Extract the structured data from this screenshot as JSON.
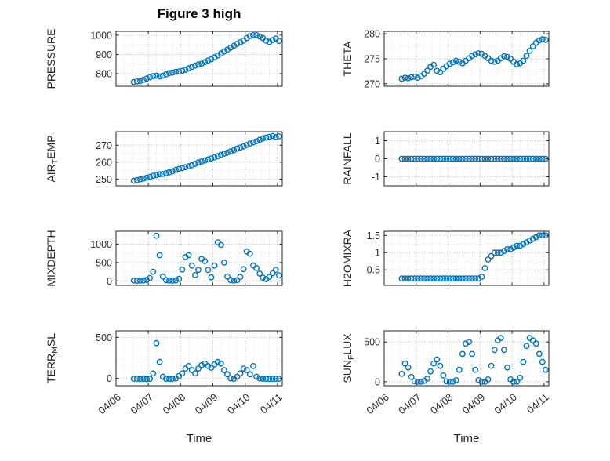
{
  "figure": {
    "title": "Figure 3 high",
    "xlabel": "Time",
    "marker_color": "#0072BD",
    "axis_color": "#262626",
    "grid_major_color": "#b8b8b8",
    "grid_minor_color": "#e2e2e2",
    "xlim": [
      0,
      5.15
    ],
    "x_ticks": {
      "values": [
        0,
        1,
        2,
        3,
        4,
        5
      ],
      "labels": [
        "04/06",
        "04/07",
        "04/08",
        "04/09",
        "04/10",
        "04/11"
      ]
    },
    "x_days": [
      0.55,
      0.65,
      0.75,
      0.85,
      0.95,
      1.05,
      1.15,
      1.25,
      1.35,
      1.45,
      1.55,
      1.65,
      1.75,
      1.85,
      1.95,
      2.05,
      2.15,
      2.25,
      2.35,
      2.45,
      2.55,
      2.65,
      2.75,
      2.85,
      2.95,
      3.05,
      3.15,
      3.25,
      3.35,
      3.45,
      3.55,
      3.65,
      3.75,
      3.85,
      3.95,
      4.05,
      4.15,
      4.25,
      4.35,
      4.45,
      4.55,
      4.65,
      4.75,
      4.85,
      4.95,
      5.05
    ]
  },
  "chart_data": [
    {
      "id": "pressure",
      "type": "scatter",
      "ylabel": "PRESSURE",
      "ylabel_parts": [
        {
          "t": "PRESSURE"
        }
      ],
      "yticks": [
        800,
        900,
        1000
      ],
      "ylim": [
        735,
        1020
      ],
      "y": [
        757,
        760,
        763,
        768,
        775,
        782,
        788,
        790,
        786,
        790,
        797,
        803,
        806,
        810,
        812,
        815,
        820,
        828,
        835,
        842,
        848,
        852,
        860,
        868,
        875,
        885,
        895,
        905,
        915,
        925,
        935,
        945,
        955,
        963,
        972,
        985,
        995,
        1000,
        1000,
        993,
        985,
        972,
        965,
        975,
        982,
        970
      ]
    },
    {
      "id": "theta",
      "type": "scatter",
      "ylabel": "THETA",
      "ylabel_parts": [
        {
          "t": "THETA"
        }
      ],
      "yticks": [
        270,
        275,
        280
      ],
      "ylim": [
        269.5,
        280.5
      ],
      "y": [
        271,
        271.2,
        271.1,
        271.3,
        271.4,
        271.2,
        271.5,
        272,
        272.6,
        273.4,
        273.8,
        272.6,
        272.3,
        273,
        273.5,
        274,
        274.3,
        274.6,
        274.4,
        274.1,
        274.6,
        275.1,
        275.6,
        275.9,
        276.1,
        276,
        275.6,
        275.1,
        274.6,
        274.4,
        274.6,
        275.1,
        275.5,
        275.4,
        275,
        274.4,
        273.9,
        274.1,
        274.6,
        275.6,
        276.6,
        277.5,
        278.2,
        278.7,
        278.9,
        278.8
      ]
    },
    {
      "id": "airtemp",
      "type": "scatter",
      "ylabel": "AIR_TEMP",
      "ylabel_parts": [
        {
          "t": "AIR"
        },
        {
          "t": "T",
          "sub": true
        },
        {
          "t": "EMP"
        }
      ],
      "yticks": [
        250,
        260,
        270
      ],
      "ylim": [
        246,
        278
      ],
      "y": [
        249,
        249.4,
        249.9,
        250.3,
        250.8,
        251.3,
        251.9,
        252.4,
        252.8,
        253,
        253.4,
        254,
        254.6,
        255.4,
        256,
        256.5,
        257,
        257.6,
        258.2,
        259,
        259.8,
        260.4,
        261,
        261.6,
        262.2,
        262.8,
        263.5,
        264.3,
        265,
        265.6,
        266.3,
        267.1,
        268,
        268.6,
        269.3,
        270.1,
        271,
        271.7,
        272.4,
        273.2,
        274,
        274.5,
        275,
        275.4,
        274.8,
        275.2
      ]
    },
    {
      "id": "rainfall",
      "type": "scatter",
      "ylabel": "RAINFALL",
      "ylabel_parts": [
        {
          "t": "RAINFALL"
        }
      ],
      "yticks": [
        -1,
        0,
        1
      ],
      "ylim": [
        -1.5,
        1.5
      ],
      "y": [
        0,
        0,
        0,
        0,
        0,
        0,
        0,
        0,
        0,
        0,
        0,
        0,
        0,
        0,
        0,
        0,
        0,
        0,
        0,
        0,
        0,
        0,
        0,
        0,
        0,
        0,
        0,
        0,
        0,
        0,
        0,
        0,
        0,
        0,
        0,
        0,
        0,
        0,
        0,
        0,
        0,
        0,
        0,
        0,
        0,
        0
      ]
    },
    {
      "id": "mixdepth",
      "type": "scatter",
      "ylabel": "MIXDEPTH",
      "ylabel_parts": [
        {
          "t": "MIXDEPTH"
        }
      ],
      "yticks": [
        0,
        500,
        1000
      ],
      "ylim": [
        -120,
        1350
      ],
      "y": [
        10,
        5,
        8,
        12,
        30,
        80,
        250,
        1230,
        700,
        120,
        25,
        10,
        8,
        15,
        60,
        310,
        650,
        700,
        420,
        160,
        300,
        600,
        540,
        300,
        100,
        420,
        1050,
        980,
        500,
        120,
        25,
        10,
        20,
        110,
        320,
        800,
        740,
        420,
        350,
        200,
        90,
        50,
        110,
        210,
        300,
        150
      ]
    },
    {
      "id": "h2omixra",
      "type": "scatter",
      "ylabel": "H2OMIXRA",
      "ylabel_parts": [
        {
          "t": "H2OMIXRA"
        }
      ],
      "yticks": [
        0.5,
        1,
        1.5
      ],
      "ylim": [
        0.05,
        1.62
      ],
      "y": [
        0.25,
        0.25,
        0.25,
        0.25,
        0.25,
        0.25,
        0.25,
        0.25,
        0.25,
        0.25,
        0.25,
        0.25,
        0.25,
        0.25,
        0.25,
        0.25,
        0.25,
        0.25,
        0.25,
        0.25,
        0.25,
        0.25,
        0.25,
        0.25,
        0.25,
        0.3,
        0.55,
        0.8,
        0.9,
        1,
        1,
        1,
        1.05,
        1.1,
        1.1,
        1.15,
        1.2,
        1.2,
        1.25,
        1.3,
        1.35,
        1.4,
        1.45,
        1.5,
        1.5,
        1.5
      ]
    },
    {
      "id": "terrmsl",
      "type": "scatter",
      "ylabel": "TERR_MSL",
      "ylabel_parts": [
        {
          "t": "TERR"
        },
        {
          "t": "M",
          "sub": true
        },
        {
          "t": "SL"
        }
      ],
      "yticks": [
        0,
        500
      ],
      "ylim": [
        -90,
        580
      ],
      "y": [
        -5,
        -5,
        -8,
        -5,
        -10,
        -5,
        60,
        430,
        200,
        20,
        -5,
        -8,
        -5,
        0,
        30,
        60,
        120,
        150,
        100,
        60,
        120,
        160,
        180,
        150,
        130,
        170,
        200,
        180,
        100,
        50,
        0,
        -5,
        20,
        60,
        120,
        100,
        50,
        150,
        20,
        0,
        -5,
        -5,
        -8,
        -5,
        -5,
        -5
      ]
    },
    {
      "id": "sunflux",
      "type": "scatter",
      "ylabel": "SUN_FLUX",
      "ylabel_parts": [
        {
          "t": "SUN"
        },
        {
          "t": "F",
          "sub": true
        },
        {
          "t": "LUX"
        }
      ],
      "yticks": [
        0,
        500
      ],
      "ylim": [
        -50,
        640
      ],
      "y": [
        100,
        230,
        180,
        60,
        5,
        0,
        0,
        10,
        40,
        130,
        230,
        280,
        200,
        80,
        5,
        0,
        0,
        20,
        150,
        350,
        480,
        500,
        350,
        150,
        20,
        0,
        0,
        30,
        200,
        400,
        520,
        550,
        400,
        180,
        30,
        0,
        0,
        50,
        250,
        450,
        550,
        520,
        480,
        350,
        250,
        150
      ]
    }
  ]
}
